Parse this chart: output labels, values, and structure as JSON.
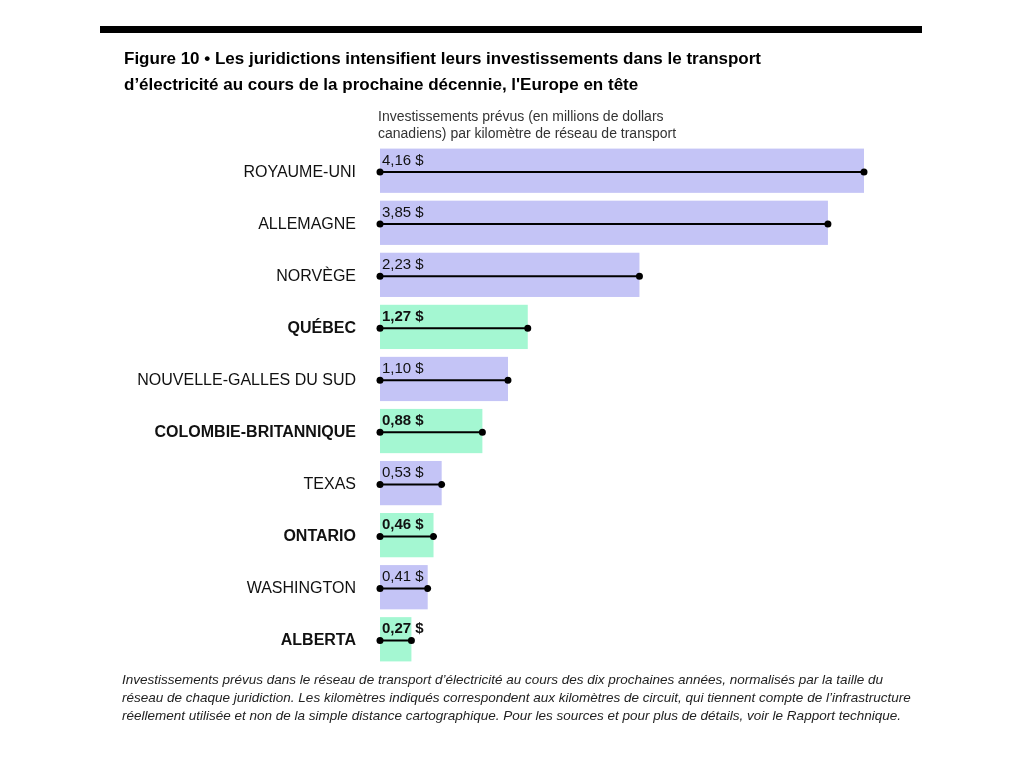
{
  "chart_data": {
    "type": "bar",
    "orientation": "horizontal",
    "title": "Figure 10  •  Les juridictions intensifient leurs investissements dans le transport d’électricité au cours de la prochaine décennie, l'Europe en tête",
    "xlabel": "Investissements prévus (en millions de dollars canadiens) par kilomètre de réseau de transport",
    "categories": [
      "ROYAUME-UNI",
      "ALLEMAGNE",
      "NORVÈGE",
      "QUÉBEC",
      "NOUVELLE-GALLES DU SUD",
      "COLOMBIE-BRITANNIQUE",
      "TEXAS",
      "ONTARIO",
      "WASHINGTON",
      "ALBERTA"
    ],
    "series": [
      {
        "type": "bar",
        "values": [
          4.16,
          3.85,
          2.23,
          1.27,
          1.1,
          0.88,
          0.53,
          0.46,
          0.41,
          0.27
        ],
        "colors": [
          "#c4c4f6",
          "#c4c4f6",
          "#c4c4f6",
          "#a4f7d2",
          "#c4c4f6",
          "#a4f7d2",
          "#c4c4f6",
          "#a4f7d2",
          "#c4c4f6",
          "#a4f7d2"
        ],
        "value_labels": [
          "4,16 $",
          "3,85 $",
          "2,23 $",
          "1,27 $",
          "1,10 $",
          "0,88 $",
          "0,53 $",
          "0,46 $",
          "0,41 $",
          "0,27 $"
        ]
      },
      {
        "type": "lollipop",
        "color": "#000000",
        "values": [
          4.16,
          3.85,
          2.23,
          1.27,
          1.1,
          0.88,
          0.53,
          0.46,
          0.41,
          0.27
        ]
      }
    ],
    "annotations": [
      "Investissements prévus dans le réseau de transport d’électricité au cours des dix prochaines années, normalisés par la taille du réseau de chaque juridiction. Les kilomètres indiqués correspondent aux kilomètres de circuit, qui tiennent compte de l’infrastructure réellement utilisée et non de la simple distance cartographique. Pour les sources et pour plus de détails, voir le Rapport technique."
    ]
  }
}
